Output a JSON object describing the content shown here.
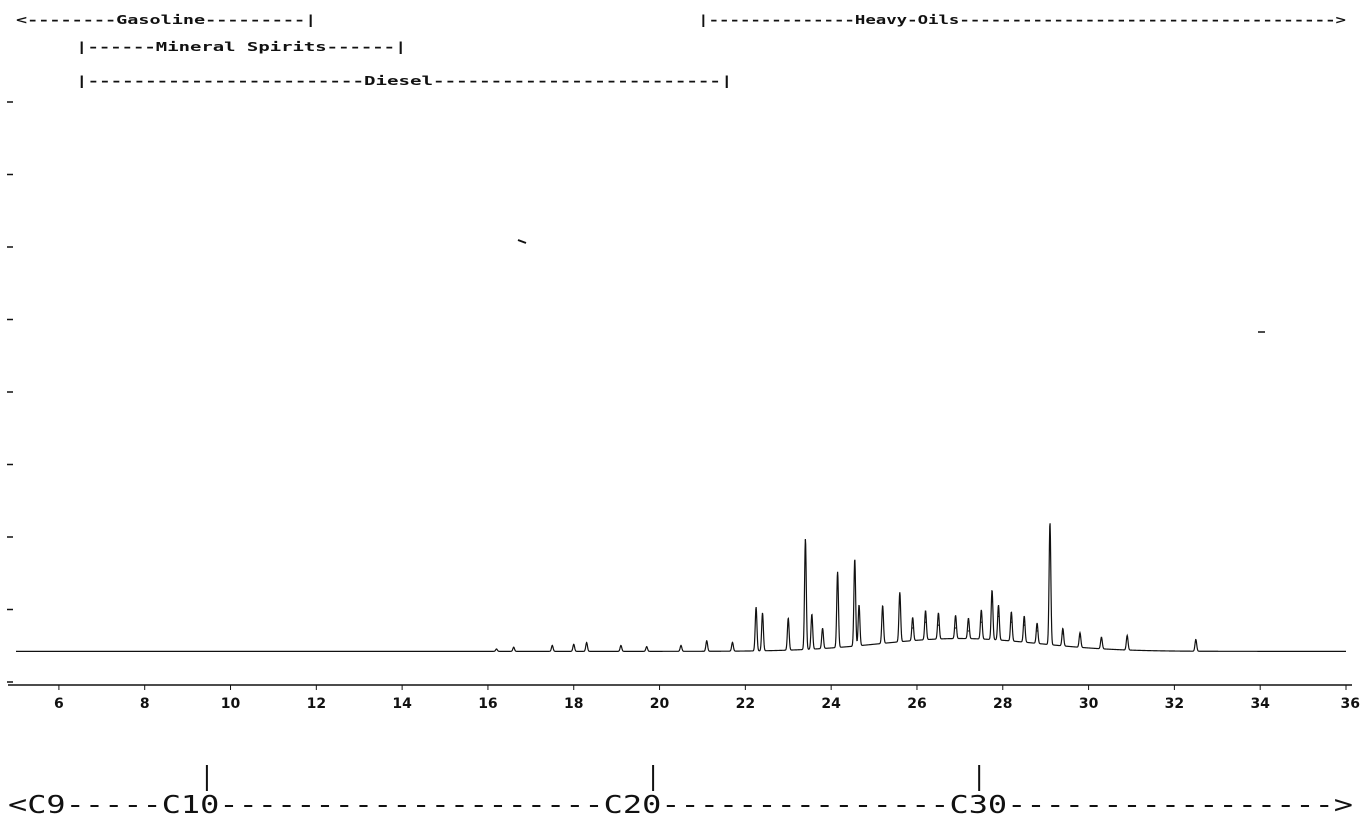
{
  "chart_data": {
    "type": "line",
    "title": "",
    "xlabel": "",
    "ylabel": "",
    "xlim": [
      5,
      36
    ],
    "ylim": [
      0,
      11
    ],
    "grid": false,
    "x_ticks": [
      6,
      8,
      10,
      12,
      14,
      16,
      18,
      20,
      22,
      24,
      26,
      28,
      30,
      32,
      34,
      36
    ],
    "y_tick_count": 9,
    "baseline": 0.2,
    "peaks": [
      {
        "x": 16.2,
        "y": 0.24
      },
      {
        "x": 16.6,
        "y": 0.27
      },
      {
        "x": 17.5,
        "y": 0.3
      },
      {
        "x": 18.0,
        "y": 0.32
      },
      {
        "x": 18.3,
        "y": 0.35
      },
      {
        "x": 19.1,
        "y": 0.3
      },
      {
        "x": 19.7,
        "y": 0.28
      },
      {
        "x": 20.5,
        "y": 0.3
      },
      {
        "x": 21.1,
        "y": 0.38
      },
      {
        "x": 21.7,
        "y": 0.35
      },
      {
        "x": 22.25,
        "y": 0.95
      },
      {
        "x": 22.4,
        "y": 0.85
      },
      {
        "x": 23.0,
        "y": 0.75
      },
      {
        "x": 23.4,
        "y": 2.1
      },
      {
        "x": 23.55,
        "y": 0.8
      },
      {
        "x": 23.8,
        "y": 0.55
      },
      {
        "x": 24.15,
        "y": 1.5
      },
      {
        "x": 24.55,
        "y": 1.7
      },
      {
        "x": 24.65,
        "y": 0.9
      },
      {
        "x": 25.2,
        "y": 0.85
      },
      {
        "x": 25.6,
        "y": 1.05
      },
      {
        "x": 25.9,
        "y": 0.6
      },
      {
        "x": 26.2,
        "y": 0.7
      },
      {
        "x": 26.5,
        "y": 0.65
      },
      {
        "x": 26.9,
        "y": 0.6
      },
      {
        "x": 27.2,
        "y": 0.55
      },
      {
        "x": 27.5,
        "y": 0.7
      },
      {
        "x": 27.75,
        "y": 1.05
      },
      {
        "x": 27.9,
        "y": 0.8
      },
      {
        "x": 28.2,
        "y": 0.7
      },
      {
        "x": 28.5,
        "y": 0.65
      },
      {
        "x": 28.8,
        "y": 0.55
      },
      {
        "x": 29.1,
        "y": 2.3
      },
      {
        "x": 29.4,
        "y": 0.5
      },
      {
        "x": 29.8,
        "y": 0.45
      },
      {
        "x": 30.3,
        "y": 0.4
      },
      {
        "x": 30.9,
        "y": 0.45
      },
      {
        "x": 32.5,
        "y": 0.4
      }
    ],
    "ranges": [
      {
        "text": "<--------Gasoline---------|",
        "x_start": 5,
        "x_end": 12,
        "row": 0
      },
      {
        "text": "|------Mineral Spirits------|",
        "x_start": 6.4,
        "x_end": 14.1,
        "row": 1
      },
      {
        "text": "|------------------------Diesel-------------------------|",
        "x_start": 6.4,
        "x_end": 21.7,
        "row": 2
      },
      {
        "text": "|--------------Heavy-Oils------------------------------------>",
        "x_start": 20.9,
        "x_end": 36,
        "row": 0
      }
    ],
    "carbon_markers": [
      {
        "label": "C10",
        "x": 9.1
      },
      {
        "label": "C20",
        "x": 19.5
      },
      {
        "label": "C30",
        "x": 27.1
      }
    ],
    "carbon_scale_text": "<C9-----C10--------------------C20---------------C30----------------->"
  }
}
